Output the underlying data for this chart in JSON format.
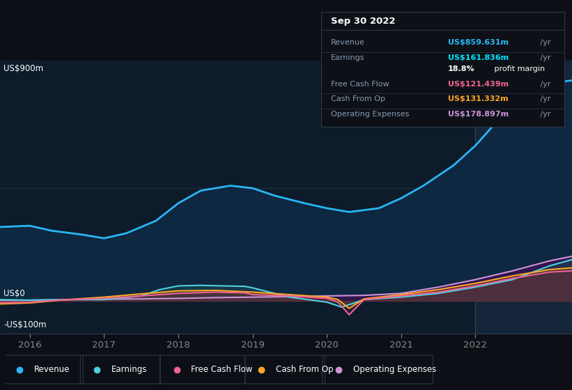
{
  "bg_color": "#0c1016",
  "chart_bg": "#0d1b2a",
  "ylabel_top": "US$900m",
  "ylabel_zero": "US$0",
  "ylabel_neg": "-US$100m",
  "ylim": [
    -130,
    960
  ],
  "xlim_start": 2015.6,
  "xlim_end": 2023.3,
  "xticks": [
    2016,
    2017,
    2018,
    2019,
    2020,
    2021,
    2022
  ],
  "highlight_x_start": 2022.0,
  "zero_line_y": 0,
  "mid_line_y": 450,
  "tooltip": {
    "date": "Sep 30 2022",
    "rows": [
      {
        "label": "Revenue",
        "value": "US$859.631m",
        "suffix": " /yr",
        "color": "#29b6f6"
      },
      {
        "label": "Earnings",
        "value": "US$161.836m",
        "suffix": " /yr",
        "color": "#00e5ff"
      },
      {
        "label": "",
        "value": "18.8%",
        "suffix": " profit margin",
        "color": "#ffffff"
      },
      {
        "label": "Free Cash Flow",
        "value": "US$121.439m",
        "suffix": " /yr",
        "color": "#f06292"
      },
      {
        "label": "Cash From Op",
        "value": "US$131.332m",
        "suffix": " /yr",
        "color": "#ffa726"
      },
      {
        "label": "Operating Expenses",
        "value": "US$178.897m",
        "suffix": " /yr",
        "color": "#ce93d8"
      }
    ]
  },
  "series": {
    "revenue": {
      "color": "#29b6f6",
      "fill_color": "#0d2840",
      "x": [
        2015.6,
        2016.0,
        2016.3,
        2016.7,
        2017.0,
        2017.3,
        2017.7,
        2018.0,
        2018.3,
        2018.7,
        2019.0,
        2019.3,
        2019.7,
        2020.0,
        2020.3,
        2020.7,
        2021.0,
        2021.3,
        2021.7,
        2022.0,
        2022.3,
        2022.7,
        2023.0,
        2023.3
      ],
      "y": [
        295,
        300,
        280,
        265,
        250,
        270,
        320,
        390,
        440,
        460,
        450,
        420,
        390,
        370,
        355,
        370,
        410,
        460,
        540,
        620,
        720,
        820,
        870,
        880
      ]
    },
    "earnings": {
      "color": "#4dd0e1",
      "fill_color": "#4dd0e130",
      "x": [
        2015.6,
        2016.0,
        2016.5,
        2017.0,
        2017.5,
        2017.75,
        2018.0,
        2018.3,
        2018.6,
        2018.9,
        2019.0,
        2019.5,
        2020.0,
        2020.2,
        2020.5,
        2021.0,
        2021.5,
        2022.0,
        2022.5,
        2023.0,
        2023.3
      ],
      "y": [
        5,
        3,
        5,
        5,
        20,
        45,
        60,
        62,
        60,
        58,
        52,
        15,
        -5,
        -25,
        5,
        15,
        30,
        55,
        85,
        140,
        165
      ]
    },
    "free_cash_flow": {
      "color": "#f06292",
      "fill_color": "#f0629220",
      "x": [
        2015.6,
        2016.0,
        2016.5,
        2017.0,
        2017.5,
        2018.0,
        2018.5,
        2018.9,
        2019.0,
        2019.5,
        2020.0,
        2020.15,
        2020.3,
        2020.5,
        2021.0,
        2021.5,
        2022.0,
        2022.5,
        2023.0,
        2023.3
      ],
      "y": [
        -8,
        -5,
        5,
        10,
        20,
        30,
        35,
        32,
        25,
        20,
        10,
        -5,
        -55,
        5,
        20,
        35,
        60,
        90,
        115,
        120
      ]
    },
    "cash_from_op": {
      "color": "#ffa726",
      "fill_color": "#ffa72620",
      "x": [
        2015.6,
        2016.0,
        2016.5,
        2017.0,
        2017.5,
        2018.0,
        2018.5,
        2019.0,
        2019.5,
        2020.0,
        2020.15,
        2020.3,
        2020.5,
        2021.0,
        2021.5,
        2022.0,
        2022.5,
        2023.0,
        2023.3
      ],
      "y": [
        -12,
        -8,
        5,
        15,
        28,
        40,
        42,
        35,
        25,
        15,
        5,
        -30,
        8,
        25,
        45,
        70,
        100,
        125,
        132
      ]
    },
    "operating_expenses": {
      "color": "#ce93d8",
      "fill_color": "#4a106050",
      "x": [
        2015.6,
        2016.0,
        2016.5,
        2017.0,
        2017.5,
        2018.0,
        2018.5,
        2019.0,
        2019.5,
        2020.0,
        2020.5,
        2021.0,
        2021.5,
        2022.0,
        2022.5,
        2023.0,
        2023.3
      ],
      "y": [
        2,
        3,
        5,
        7,
        8,
        10,
        13,
        15,
        17,
        20,
        22,
        30,
        55,
        85,
        120,
        160,
        178
      ]
    }
  },
  "legend": [
    {
      "label": "Revenue",
      "color": "#29b6f6"
    },
    {
      "label": "Earnings",
      "color": "#4dd0e1"
    },
    {
      "label": "Free Cash Flow",
      "color": "#f06292"
    },
    {
      "label": "Cash From Op",
      "color": "#ffa726"
    },
    {
      "label": "Operating Expenses",
      "color": "#ce93d8"
    }
  ]
}
